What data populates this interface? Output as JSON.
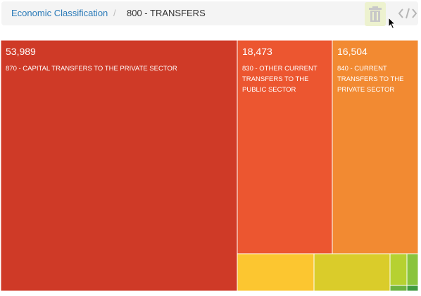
{
  "breadcrumb": {
    "root": "Economic Classification",
    "separator": "/",
    "current": "800 - TRANSFERS"
  },
  "toolbar": {
    "trash_icon": "trash-icon",
    "embed_icon": "code-embed-icon",
    "active_highlight": "#edf2cf"
  },
  "chart_data": {
    "type": "treemap",
    "title": "",
    "items": [
      {
        "value": 53989,
        "value_label": "53,989",
        "label": "870 - CAPITAL TRANSFERS TO THE PRIVATE SECTOR",
        "color": "#cf3a27"
      },
      {
        "value": 18473,
        "value_label": "18,473",
        "label": "830 - OTHER CURRENT TRANSFERS TO THE PUBLIC SECTOR",
        "color": "#ec5630"
      },
      {
        "value": 16504,
        "value_label": "16,504",
        "label": "840 - CURRENT TRANSFERS TO THE PRIVATE SECTOR",
        "color": "#f28a32"
      },
      {
        "value": null,
        "value_label": "",
        "label": "",
        "color": "#fcc630"
      },
      {
        "value": null,
        "value_label": "",
        "label": "",
        "color": "#dacc2a"
      },
      {
        "value": null,
        "value_label": "",
        "label": "",
        "color": "#b6d131"
      },
      {
        "value": null,
        "value_label": "",
        "label": "",
        "color": "#8ac43d"
      },
      {
        "value": null,
        "value_label": "",
        "label": "",
        "color": "#6db33f"
      },
      {
        "value": null,
        "value_label": "",
        "label": "",
        "color": "#3f9a3f"
      }
    ]
  }
}
